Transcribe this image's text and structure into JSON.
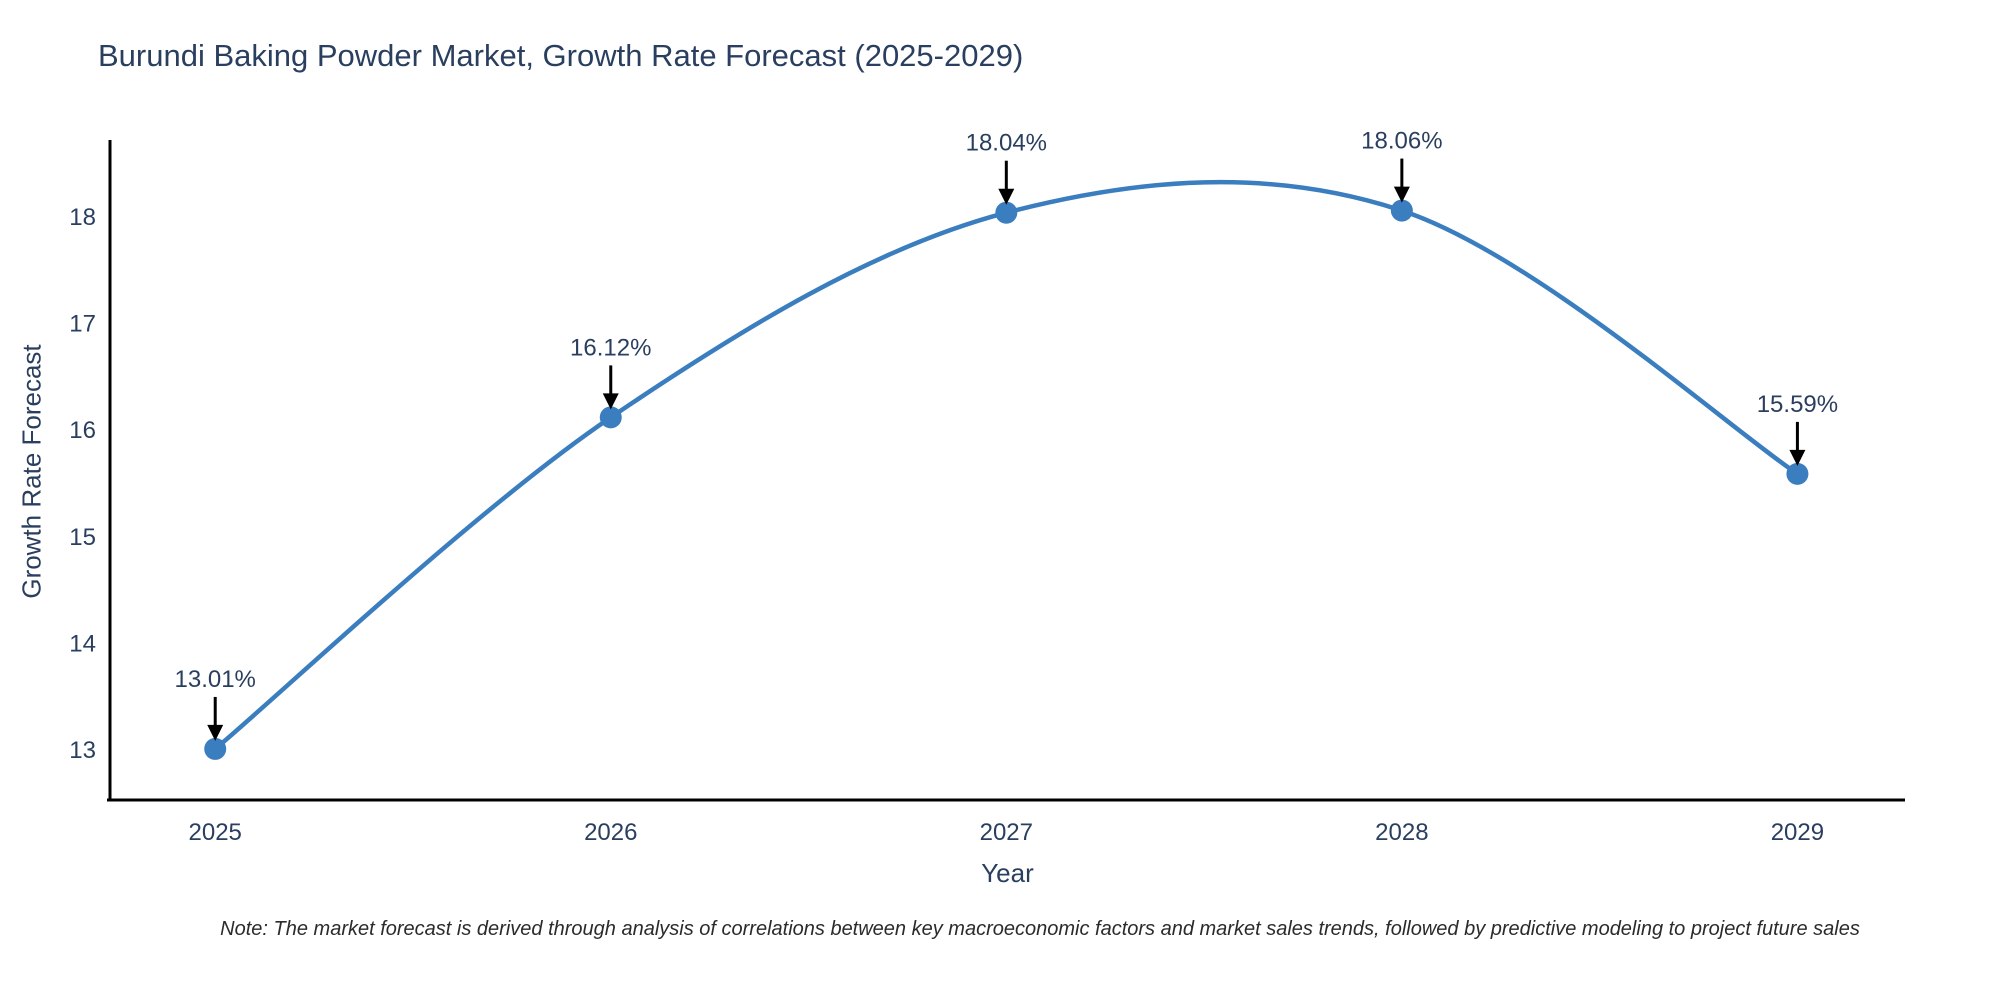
{
  "figure": {
    "title": "Burundi Baking Powder Market, Growth Rate Forecast (2025-2029)",
    "note": "Note: The market forecast is derived through analysis of correlations between key macroeconomic factors and market sales trends, followed by predictive modeling to project future sales"
  },
  "chart_data": {
    "type": "line",
    "title": "Burundi Baking Powder Market, Growth Rate Forecast (2025-2029)",
    "xlabel": "Year",
    "ylabel": "Growth Rate Forecast",
    "x": [
      2025,
      2026,
      2027,
      2028,
      2029
    ],
    "series": [
      {
        "name": "Growth Rate Forecast",
        "values": [
          13.01,
          16.12,
          18.04,
          18.06,
          15.59
        ]
      }
    ],
    "point_labels": [
      "13.01%",
      "16.12%",
      "18.04%",
      "18.06%",
      "15.59%"
    ],
    "xticks": [
      "2025",
      "2026",
      "2027",
      "2028",
      "2029"
    ],
    "yticks": [
      13,
      14,
      15,
      16,
      17,
      18
    ],
    "xlim": [
      2024.734,
      2029.272
    ],
    "ylim": [
      12.531,
      18.722
    ],
    "line_shape": "spline",
    "grid": false,
    "legend_position": "none",
    "annotations_have_arrows": true,
    "colors": {
      "line": "#3a7ebf",
      "marker": "#3a7ebf",
      "arrow": "#000000",
      "axis_line": "#000000",
      "text": "#2a3f5f"
    }
  }
}
